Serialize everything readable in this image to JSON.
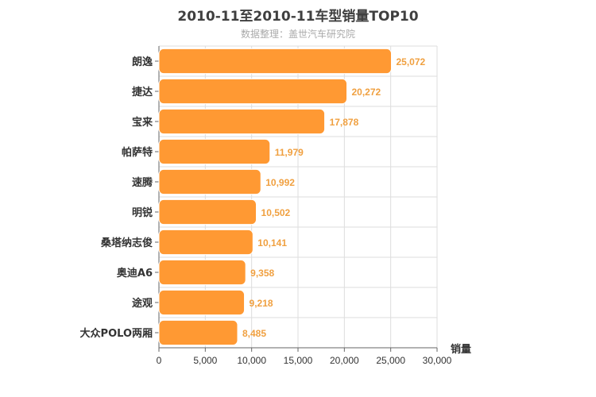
{
  "title": "2010-11至2010-11车型销量TOP10",
  "subtitle": "数据整理：盖世汽车研究院",
  "colors": {
    "bar": "#ff9933",
    "bar_stroke": "#ffffff",
    "value_label": "#f0a040",
    "grid": "#dddddd",
    "axis": "#666666"
  },
  "chart_data": {
    "type": "bar",
    "orientation": "horizontal",
    "categories": [
      "朗逸",
      "捷达",
      "宝来",
      "帕萨特",
      "速腾",
      "明锐",
      "桑塔纳志俊",
      "奥迪A6",
      "途观",
      "大众POLO两厢"
    ],
    "values": [
      25072,
      20272,
      17878,
      11979,
      10992,
      10502,
      10141,
      9358,
      9218,
      8485
    ],
    "value_labels": [
      "25,072",
      "20,272",
      "17,878",
      "11,979",
      "10,992",
      "10,502",
      "10,141",
      "9,358",
      "9,218",
      "8,485"
    ],
    "xlim": [
      0,
      30000
    ],
    "xticks": [
      0,
      5000,
      10000,
      15000,
      20000,
      25000,
      30000
    ],
    "xtick_labels": [
      "0",
      "5,000",
      "10,000",
      "15,000",
      "20,000",
      "25,000",
      "30,000"
    ],
    "xlabel": "销量",
    "grid": true
  }
}
